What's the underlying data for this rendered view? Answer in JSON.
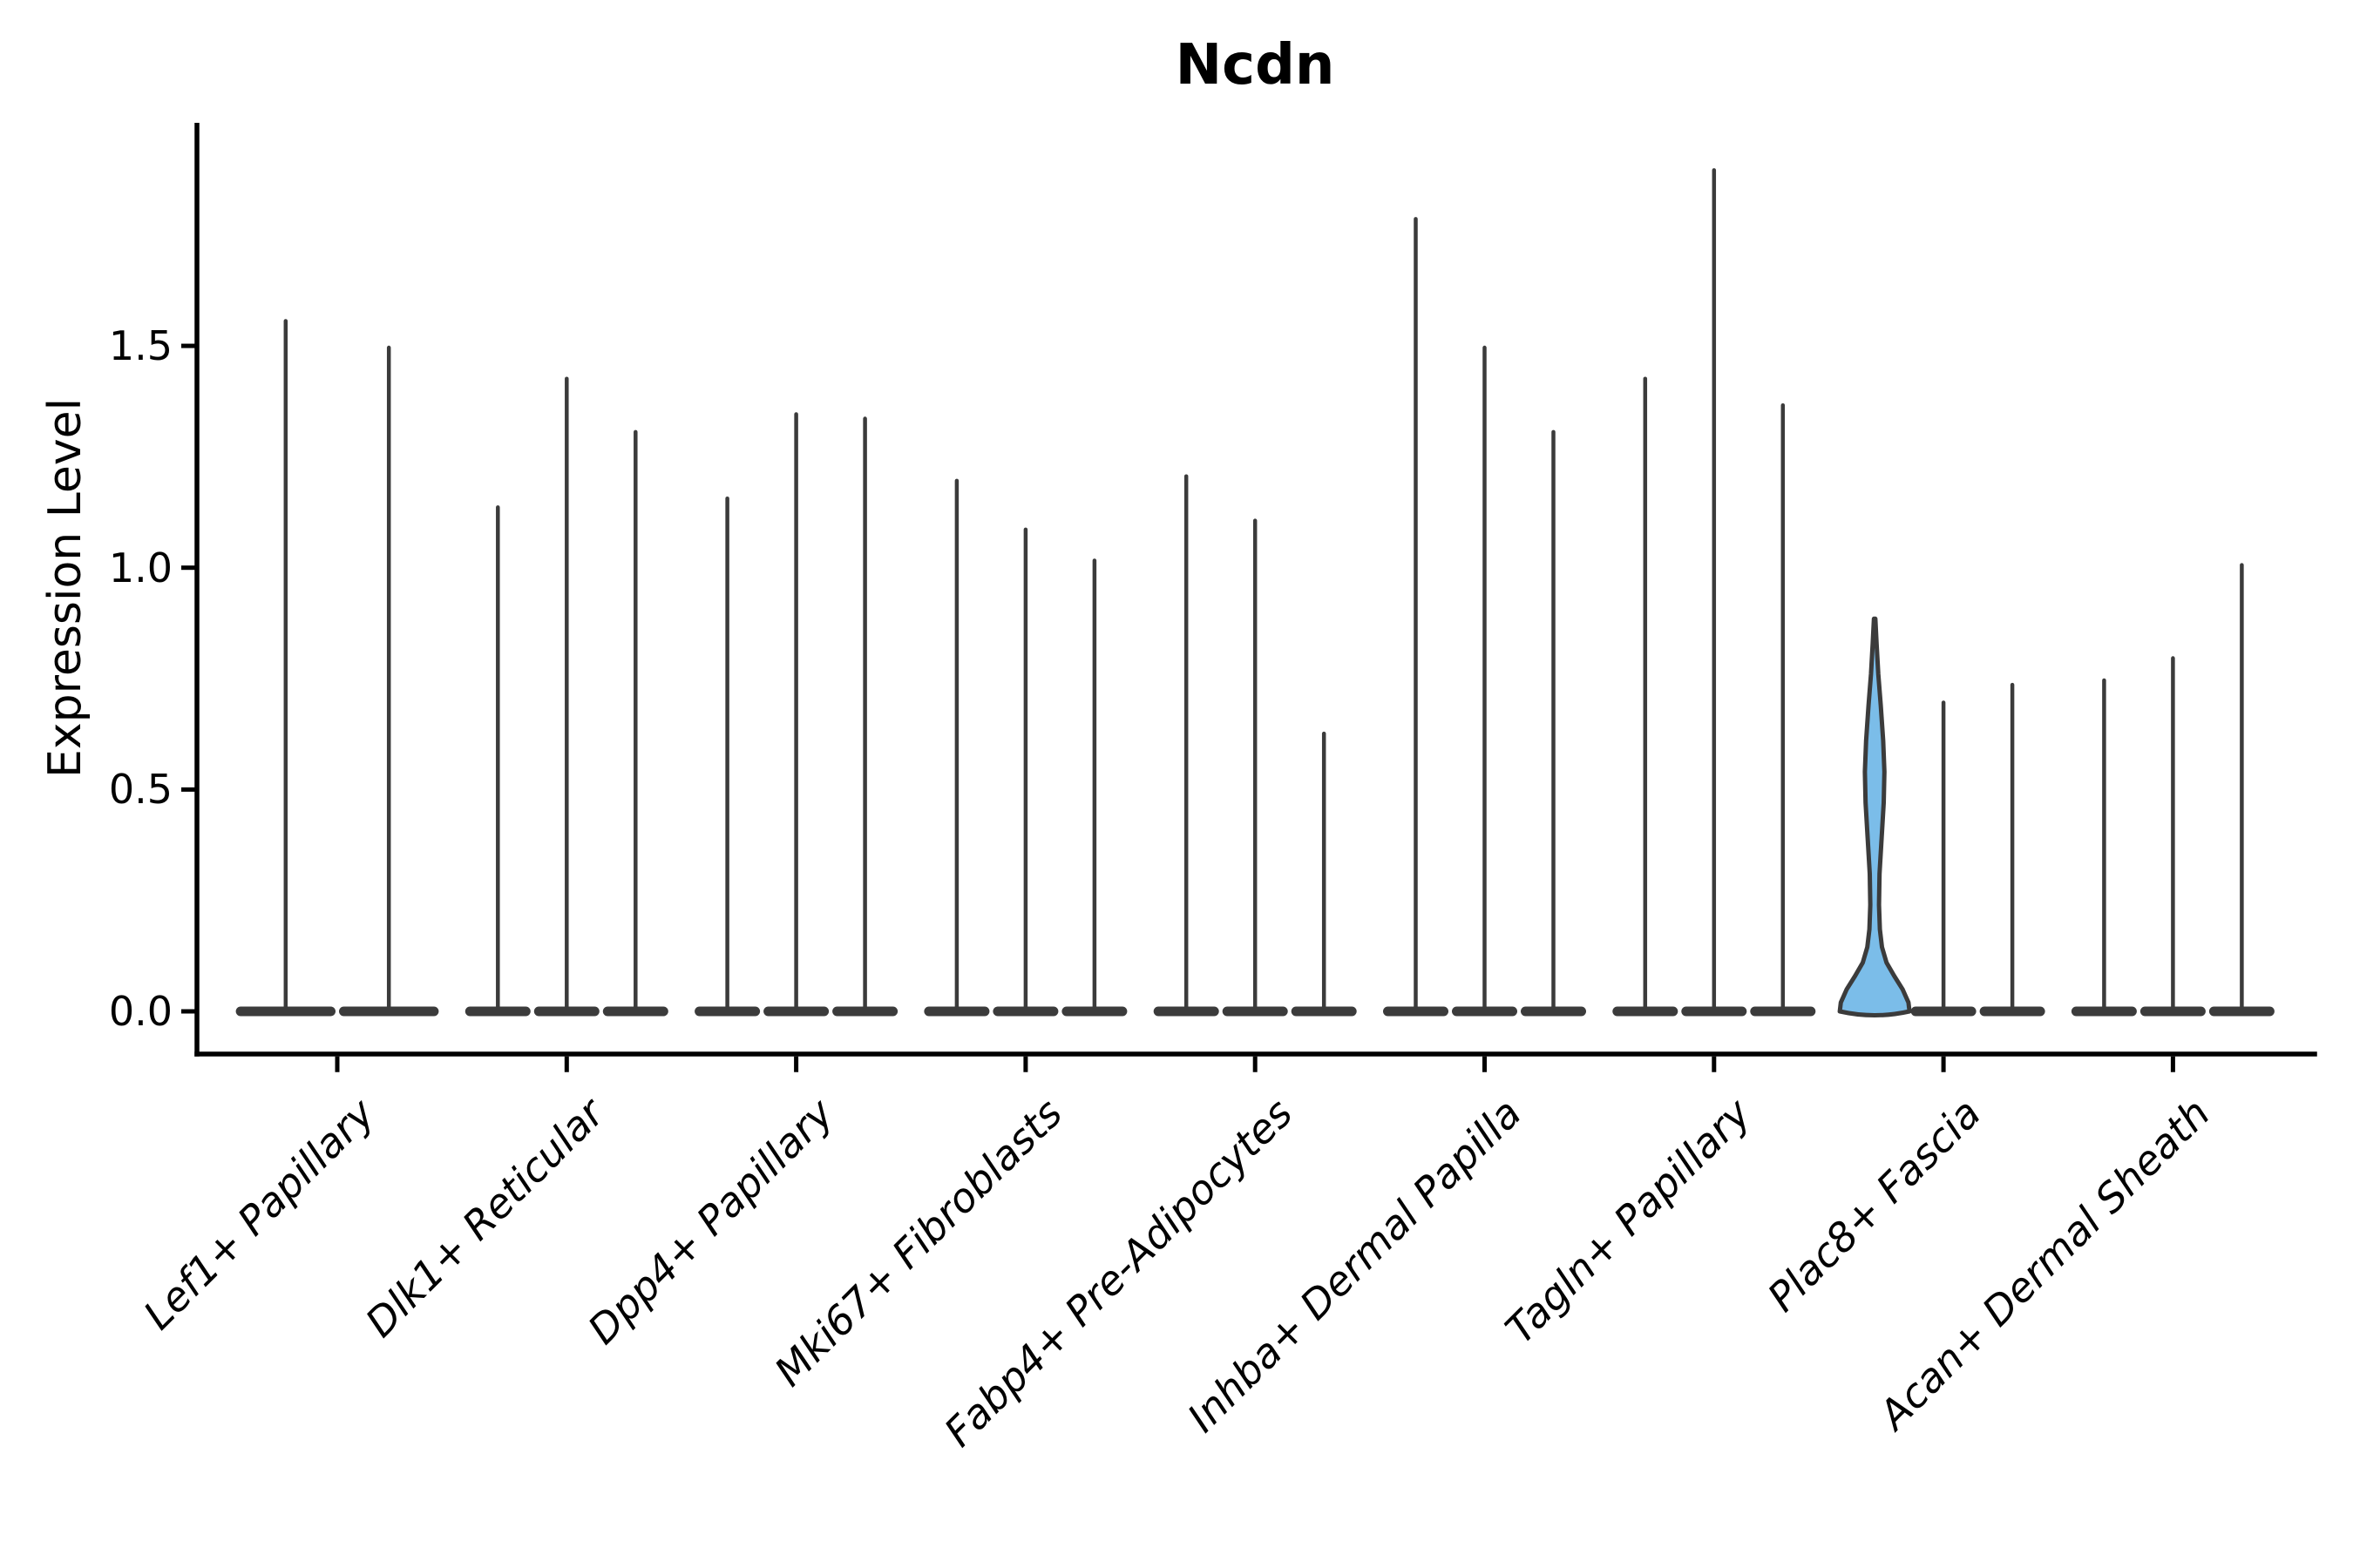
{
  "chart_data": {
    "type": "violin",
    "title": "Ncdn",
    "xlabel": "",
    "ylabel": "Expression Level",
    "ylim": [
      -0.1,
      2.0
    ],
    "yticks": [
      {
        "label": "0.0",
        "value": 0.0
      },
      {
        "label": "0.5",
        "value": 0.5
      },
      {
        "label": "1.0",
        "value": 1.0
      },
      {
        "label": "1.5",
        "value": 1.5
      }
    ],
    "grid": false,
    "legend": "none",
    "categories": [
      "Lef1+ Papillary",
      "Dlk1+ Reticular",
      "Dpp4+ Papillary",
      "Mki67+ Fibroblasts",
      "Fabp4+ Pre-Adipocytes",
      "Inhba+ Dermal Papilla",
      "Tagln+ Papillary",
      "Plac8+ Fascia",
      "Acan+ Dermal Sheath"
    ],
    "groups": [
      {
        "category": "Lef1+ Papillary",
        "violins": [
          {
            "max": 1.56
          },
          {
            "max": 1.5
          }
        ]
      },
      {
        "category": "Dlk1+ Reticular",
        "violins": [
          {
            "max": 1.14
          },
          {
            "max": 1.43
          },
          {
            "max": 1.31
          }
        ]
      },
      {
        "category": "Dpp4+ Papillary",
        "violins": [
          {
            "max": 1.16
          },
          {
            "max": 1.35
          },
          {
            "max": 1.34
          }
        ]
      },
      {
        "category": "Mki67+ Fibroblasts",
        "violins": [
          {
            "max": 1.2
          },
          {
            "max": 1.09
          },
          {
            "max": 1.02
          }
        ]
      },
      {
        "category": "Fabp4+ Pre-Adipocytes",
        "violins": [
          {
            "max": 1.21
          },
          {
            "max": 1.11
          },
          {
            "max": 0.63
          }
        ]
      },
      {
        "category": "Inhba+ Dermal Papilla",
        "violins": [
          {
            "max": 1.79
          },
          {
            "max": 1.5
          },
          {
            "max": 1.31
          }
        ]
      },
      {
        "category": "Tagln+ Papillary",
        "violins": [
          {
            "max": 1.43
          },
          {
            "max": 1.9
          },
          {
            "max": 1.37
          }
        ]
      },
      {
        "category": "Plac8+ Fascia",
        "violins": [
          {
            "max": 0.89,
            "highlight": true,
            "profile": [
              [
                0.0,
                1.0
              ],
              [
                0.02,
                0.97
              ],
              [
                0.05,
                0.8
              ],
              [
                0.08,
                0.56
              ],
              [
                0.11,
                0.34
              ],
              [
                0.145,
                0.21
              ],
              [
                0.185,
                0.15
              ],
              [
                0.24,
                0.125
              ],
              [
                0.31,
                0.14
              ],
              [
                0.39,
                0.2
              ],
              [
                0.47,
                0.26
              ],
              [
                0.54,
                0.28
              ],
              [
                0.61,
                0.245
              ],
              [
                0.69,
                0.175
              ],
              [
                0.76,
                0.105
              ],
              [
                0.83,
                0.055
              ],
              [
                0.885,
                0.02
              ]
            ]
          },
          {
            "max": 0.7
          },
          {
            "max": 0.74
          }
        ]
      },
      {
        "category": "Acan+ Dermal Sheath",
        "violins": [
          {
            "max": 0.75
          },
          {
            "max": 0.8
          },
          {
            "max": 1.01
          }
        ]
      }
    ],
    "colors": {
      "violin_stroke": "#3B3B3B",
      "highlight_fill": "#7BBDE9",
      "axis": "#000000",
      "background": "#FFFFFF"
    }
  }
}
